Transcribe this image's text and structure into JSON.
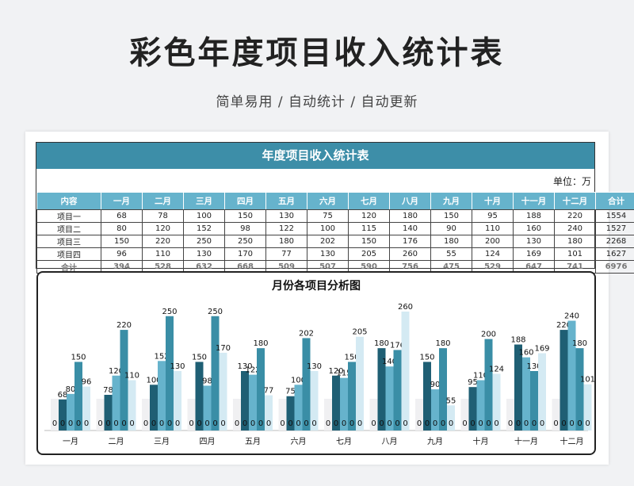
{
  "header": {
    "title": "彩色年度项目收入统计表",
    "subtitle": "简单易用  /  自动统计  /  自动更新"
  },
  "sheet": {
    "banner": "年度项目收入统计表",
    "unit": "单位：万",
    "columns": [
      "内容",
      "一月",
      "二月",
      "三月",
      "四月",
      "五月",
      "六月",
      "七月",
      "八月",
      "九月",
      "十月",
      "十一月",
      "十二月",
      "合计"
    ],
    "rows": [
      [
        "项目一",
        "68",
        "78",
        "100",
        "150",
        "130",
        "75",
        "120",
        "180",
        "150",
        "95",
        "188",
        "220",
        "1554"
      ],
      [
        "项目二",
        "80",
        "120",
        "152",
        "98",
        "122",
        "100",
        "115",
        "140",
        "90",
        "110",
        "160",
        "240",
        "1527"
      ],
      [
        "项目三",
        "150",
        "220",
        "250",
        "250",
        "180",
        "202",
        "150",
        "176",
        "180",
        "200",
        "130",
        "180",
        "2268"
      ],
      [
        "项目四",
        "96",
        "110",
        "130",
        "170",
        "77",
        "130",
        "205",
        "260",
        "55",
        "124",
        "169",
        "101",
        "1627"
      ],
      [
        "合计",
        "394",
        "528",
        "632",
        "668",
        "509",
        "507",
        "590",
        "756",
        "475",
        "529",
        "647",
        "741",
        "6976"
      ]
    ]
  },
  "chart_data": {
    "type": "bar",
    "title": "月份各项目分析图",
    "categories": [
      "一月",
      "二月",
      "三月",
      "四月",
      "五月",
      "六月",
      "七月",
      "八月",
      "九月",
      "十月",
      "十一月",
      "十二月"
    ],
    "ylim": [
      0,
      260
    ],
    "series": [
      {
        "values": [
          0,
          0,
          0,
          0,
          0,
          0,
          0,
          0,
          0,
          0,
          0,
          0
        ],
        "color": "#f0f0f2"
      },
      {
        "values": [
          68,
          78,
          100,
          150,
          130,
          75,
          120,
          180,
          150,
          95,
          188,
          220
        ],
        "color": "#1f5f74"
      },
      {
        "values": [
          80,
          120,
          152,
          98,
          122,
          100,
          115,
          140,
          90,
          110,
          160,
          240
        ],
        "color": "#66b3cc"
      },
      {
        "values": [
          150,
          220,
          250,
          250,
          180,
          202,
          150,
          176,
          180,
          200,
          130,
          180
        ],
        "color": "#3a8ea6"
      },
      {
        "values": [
          96,
          110,
          130,
          170,
          77,
          130,
          205,
          260,
          55,
          124,
          169,
          101
        ],
        "color": "#d4eaf3"
      }
    ],
    "legend": "none",
    "grid": false
  }
}
